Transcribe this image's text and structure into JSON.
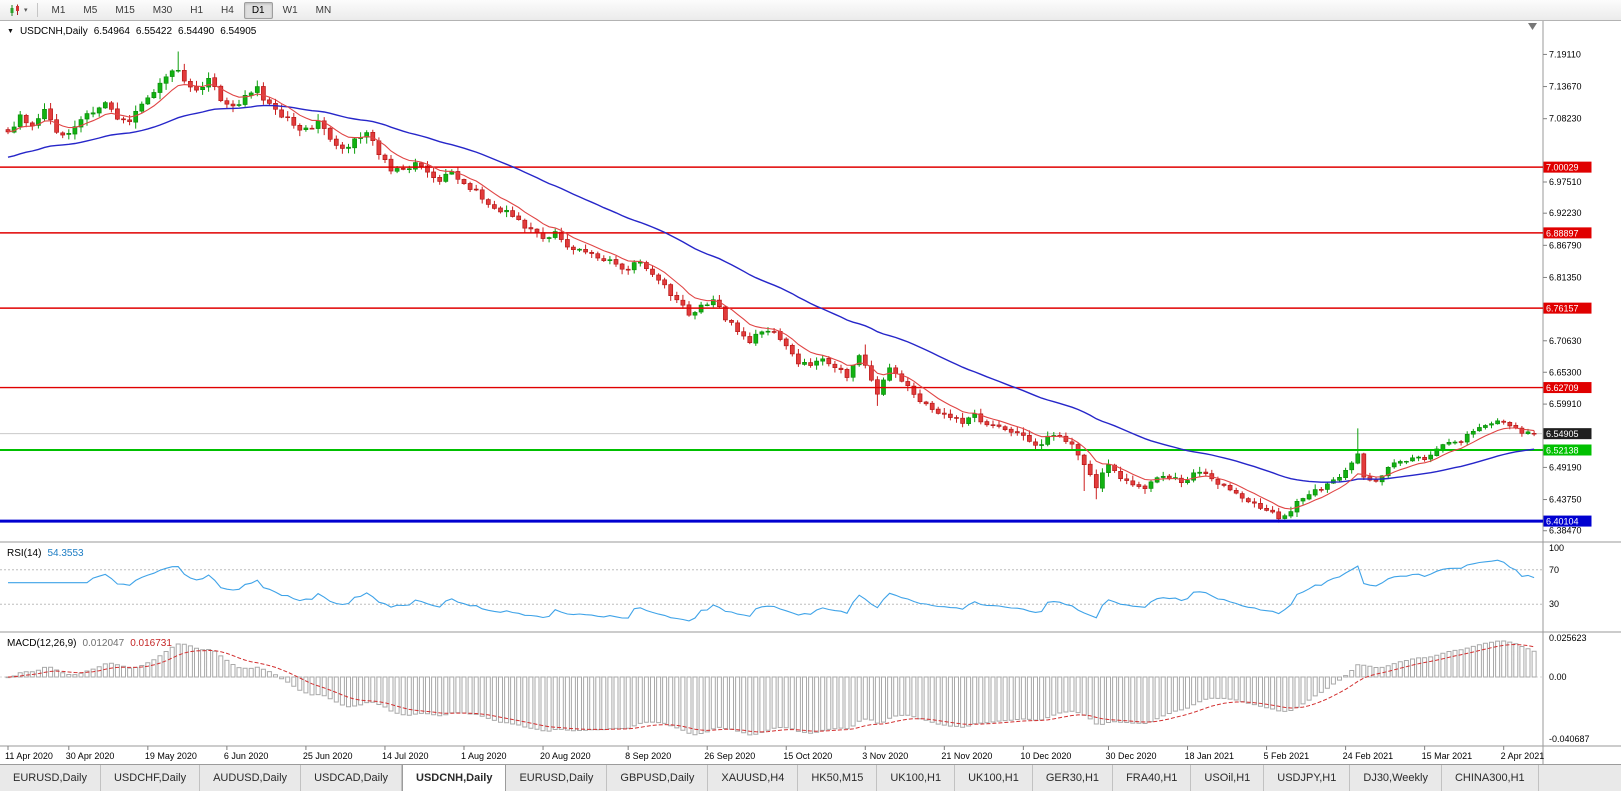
{
  "toolbar": {
    "timeframes": [
      "M1",
      "M5",
      "M15",
      "M30",
      "H1",
      "H4",
      "D1",
      "W1",
      "MN"
    ],
    "active_timeframe": "D1"
  },
  "chart": {
    "title": {
      "symbol_period": "USDCNH,Daily",
      "open": "6.54964",
      "high": "6.55422",
      "low": "6.54490",
      "close": "6.54905"
    }
  },
  "price_axis": {
    "labels": [
      "7.19110",
      "7.13670",
      "7.08230",
      "6.97510",
      "6.92230",
      "6.86790",
      "6.81350",
      "6.70630",
      "6.65300",
      "6.59910",
      "6.49190",
      "6.43750",
      "6.38470"
    ]
  },
  "rsi": {
    "label": "RSI(14)",
    "value": "54.3553",
    "axis": [
      "100",
      "70",
      "30"
    ],
    "levels": [
      70,
      30
    ],
    "color": "#3fa3e8"
  },
  "macd": {
    "label": "MACD(12,26,9)",
    "values": [
      "0.012047",
      "0.016731"
    ],
    "axis": [
      "0.025623",
      "0.00",
      "-0.040687"
    ]
  },
  "date_axis": [
    {
      "day": 0,
      "label": "11 Apr 2020"
    },
    {
      "day": 10,
      "label": "30 Apr 2020"
    },
    {
      "day": 23,
      "label": "19 May 2020"
    },
    {
      "day": 36,
      "label": "6 Jun 2020"
    },
    {
      "day": 49,
      "label": "25 Jun 2020"
    },
    {
      "day": 62,
      "label": "14 Jul 2020"
    },
    {
      "day": 75,
      "label": "1 Aug 2020"
    },
    {
      "day": 88,
      "label": "20 Aug 2020"
    },
    {
      "day": 102,
      "label": "8 Sep 2020"
    },
    {
      "day": 115,
      "label": "26 Sep 2020"
    },
    {
      "day": 128,
      "label": "15 Oct 2020"
    },
    {
      "day": 141,
      "label": "3 Nov 2020"
    },
    {
      "day": 154,
      "label": "21 Nov 2020"
    },
    {
      "day": 167,
      "label": "10 Dec 2020"
    },
    {
      "day": 181,
      "label": "30 Dec 2020"
    },
    {
      "day": 194,
      "label": "18 Jan 2021"
    },
    {
      "day": 207,
      "label": "5 Feb 2021"
    },
    {
      "day": 220,
      "label": "24 Feb 2021"
    },
    {
      "day": 233,
      "label": "15 Mar 2021"
    },
    {
      "day": 246,
      "label": "2 Apr 2021"
    }
  ],
  "tabs": {
    "active_index": 4,
    "items": [
      "EURUSD,Daily",
      "USDCHF,Daily",
      "AUDUSD,Daily",
      "USDCAD,Daily",
      "USDCNH,Daily",
      "EURUSD,Daily",
      "GBPUSD,Daily",
      "XAUUSD,H4",
      "HK50,M15",
      "UK100,H1",
      "UK100,H1",
      "GER30,H1",
      "FRA40,H1",
      "USOil,H1",
      "USDJPY,H1",
      "DJ30,Weekly",
      "CHINA300,H1"
    ],
    "note": ""
  },
  "chart_data": {
    "type": "candlestick",
    "symbol": "USDCNH",
    "timeframe": "Daily",
    "title": "USDCNH Daily with RSI(14) and MACD(12,26,9)",
    "ylim": [
      6.369,
      7.246
    ],
    "last": {
      "open": 6.54964,
      "high": 6.55422,
      "low": 6.5449,
      "close": 6.54905
    },
    "horizontal_lines": [
      {
        "value": 7.00029,
        "label": "7.00029",
        "color": "#e00000",
        "width": 1.4
      },
      {
        "value": 6.88897,
        "label": "6.88897",
        "color": "#e00000",
        "width": 1.4
      },
      {
        "value": 6.76157,
        "label": "6.76157",
        "color": "#e00000",
        "width": 1.4
      },
      {
        "value": 6.62709,
        "label": "6.62709",
        "color": "#e00000",
        "width": 1.4
      },
      {
        "value": 6.52138,
        "label": "6.52138",
        "color": "#00c000",
        "width": 2
      },
      {
        "value": 6.40104,
        "label": "6.40104",
        "color": "#0000d0",
        "width": 3
      }
    ],
    "moving_averages": [
      {
        "name": "fast",
        "color": "#e04545",
        "period": 8
      },
      {
        "name": "slow",
        "color": "#2626c9",
        "period": 40
      }
    ],
    "close_path": [
      [
        0,
        7.06
      ],
      [
        2,
        7.088
      ],
      [
        4,
        7.072
      ],
      [
        6,
        7.092
      ],
      [
        8,
        7.062
      ],
      [
        10,
        7.06
      ],
      [
        12,
        7.082
      ],
      [
        14,
        7.096
      ],
      [
        16,
        7.104
      ],
      [
        18,
        7.082
      ],
      [
        20,
        7.078
      ],
      [
        22,
        7.112
      ],
      [
        24,
        7.13
      ],
      [
        26,
        7.15
      ],
      [
        28,
        7.168
      ],
      [
        29,
        7.14
      ],
      [
        31,
        7.128
      ],
      [
        33,
        7.154
      ],
      [
        35,
        7.118
      ],
      [
        37,
        7.102
      ],
      [
        39,
        7.118
      ],
      [
        41,
        7.132
      ],
      [
        43,
        7.108
      ],
      [
        45,
        7.09
      ],
      [
        47,
        7.072
      ],
      [
        49,
        7.062
      ],
      [
        51,
        7.078
      ],
      [
        53,
        7.048
      ],
      [
        55,
        7.028
      ],
      [
        57,
        7.048
      ],
      [
        59,
        7.062
      ],
      [
        61,
        7.022
      ],
      [
        63,
        6.998
      ],
      [
        65,
        6.992
      ],
      [
        67,
        7.008
      ],
      [
        69,
        6.988
      ],
      [
        71,
        6.978
      ],
      [
        73,
        6.992
      ],
      [
        75,
        6.972
      ],
      [
        77,
        6.958
      ],
      [
        79,
        6.938
      ],
      [
        81,
        6.928
      ],
      [
        83,
        6.918
      ],
      [
        85,
        6.902
      ],
      [
        88,
        6.878
      ],
      [
        90,
        6.892
      ],
      [
        92,
        6.868
      ],
      [
        94,
        6.858
      ],
      [
        96,
        6.85
      ],
      [
        98,
        6.842
      ],
      [
        100,
        6.836
      ],
      [
        102,
        6.828
      ],
      [
        104,
        6.84
      ],
      [
        106,
        6.818
      ],
      [
        108,
        6.798
      ],
      [
        110,
        6.772
      ],
      [
        112,
        6.752
      ],
      [
        114,
        6.762
      ],
      [
        116,
        6.778
      ],
      [
        118,
        6.742
      ],
      [
        120,
        6.726
      ],
      [
        122,
        6.708
      ],
      [
        124,
        6.718
      ],
      [
        126,
        6.722
      ],
      [
        128,
        6.696
      ],
      [
        130,
        6.672
      ],
      [
        132,
        6.662
      ],
      [
        134,
        6.678
      ],
      [
        136,
        6.658
      ],
      [
        138,
        6.648
      ],
      [
        140,
        6.682
      ],
      [
        142,
        6.64
      ],
      [
        143,
        6.618
      ],
      [
        145,
        6.658
      ],
      [
        147,
        6.638
      ],
      [
        149,
        6.618
      ],
      [
        151,
        6.598
      ],
      [
        153,
        6.588
      ],
      [
        155,
        6.58
      ],
      [
        157,
        6.57
      ],
      [
        159,
        6.578
      ],
      [
        161,
        6.568
      ],
      [
        163,
        6.562
      ],
      [
        165,
        6.552
      ],
      [
        167,
        6.542
      ],
      [
        169,
        6.53
      ],
      [
        171,
        6.54
      ],
      [
        173,
        6.548
      ],
      [
        175,
        6.528
      ],
      [
        177,
        6.492
      ],
      [
        179,
        6.458
      ],
      [
        181,
        6.498
      ],
      [
        183,
        6.478
      ],
      [
        185,
        6.462
      ],
      [
        187,
        6.458
      ],
      [
        189,
        6.478
      ],
      [
        191,
        6.472
      ],
      [
        193,
        6.468
      ],
      [
        195,
        6.478
      ],
      [
        197,
        6.484
      ],
      [
        199,
        6.462
      ],
      [
        201,
        6.452
      ],
      [
        203,
        6.442
      ],
      [
        205,
        6.432
      ],
      [
        207,
        6.422
      ],
      [
        209,
        6.408
      ],
      [
        211,
        6.422
      ],
      [
        213,
        6.438
      ],
      [
        215,
        6.452
      ],
      [
        217,
        6.462
      ],
      [
        219,
        6.478
      ],
      [
        221,
        6.498
      ],
      [
        222,
        6.512
      ],
      [
        223,
        6.478
      ],
      [
        225,
        6.468
      ],
      [
        227,
        6.492
      ],
      [
        229,
        6.502
      ],
      [
        231,
        6.508
      ],
      [
        233,
        6.508
      ],
      [
        235,
        6.522
      ],
      [
        237,
        6.532
      ],
      [
        239,
        6.538
      ],
      [
        241,
        6.552
      ],
      [
        243,
        6.562
      ],
      [
        245,
        6.572
      ],
      [
        247,
        6.562
      ],
      [
        249,
        6.552
      ],
      [
        251,
        6.549
      ]
    ],
    "spikes": [
      {
        "day": 28,
        "high": 7.196
      },
      {
        "day": 112,
        "high": 6.758
      },
      {
        "day": 141,
        "high": 6.7
      },
      {
        "day": 143,
        "low": 6.596
      },
      {
        "day": 177,
        "low": 6.452
      },
      {
        "day": 179,
        "low": 6.438
      },
      {
        "day": 209,
        "low": 6.401
      },
      {
        "day": 222,
        "high": 6.558
      }
    ],
    "indicators": [
      {
        "name": "RSI",
        "period": 14,
        "current_value": 54.3553,
        "levels": [
          70,
          30
        ],
        "range": [
          0,
          100
        ]
      },
      {
        "name": "MACD",
        "params": "12,26,9",
        "value_main": 0.012047,
        "value_signal": 0.016731,
        "axis_ticks": [
          0.025623,
          0.0,
          -0.040687
        ]
      }
    ]
  }
}
